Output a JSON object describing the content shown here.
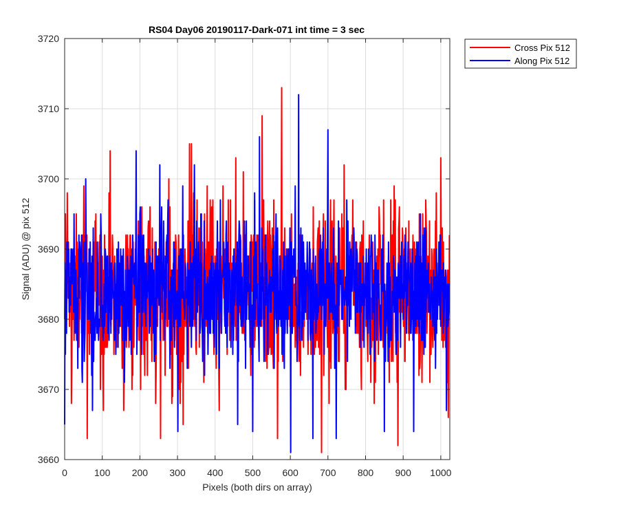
{
  "chart_data": {
    "type": "line",
    "title": "RS04 Day06 20190117-Dark-071 int time = 3 sec",
    "xlabel": "Pixels (both dirs on array)",
    "ylabel": "Signal (ADU) @ pix 512",
    "xlim": [
      0,
      1024
    ],
    "ylim": [
      3660,
      3720
    ],
    "xticks": [
      0,
      100,
      200,
      300,
      400,
      500,
      600,
      700,
      800,
      900,
      1000
    ],
    "yticks": [
      3660,
      3670,
      3680,
      3690,
      3700,
      3710,
      3720
    ],
    "grid": true,
    "legend_position": "outside top-right",
    "n_points": 1024,
    "series": [
      {
        "name": "Cross Pix 512",
        "color": "#ff0000",
        "mean": 3684,
        "noise_std": 6,
        "peaks": [
          [
            7,
            3698
          ],
          [
            18,
            3668
          ],
          [
            60,
            3663
          ],
          [
            121,
            3704
          ],
          [
            157,
            3667
          ],
          [
            255,
            3663
          ],
          [
            332,
            3705
          ],
          [
            337,
            3705
          ],
          [
            455,
            3703
          ],
          [
            475,
            3701
          ],
          [
            525,
            3709
          ],
          [
            566,
            3663
          ],
          [
            577,
            3713
          ],
          [
            683,
            3661
          ],
          [
            743,
            3702
          ],
          [
            848,
            3697
          ],
          [
            886,
            3662
          ],
          [
            1000,
            3703
          ],
          [
            1020,
            3666
          ]
        ]
      },
      {
        "name": "Along Pix 512",
        "color": "#0000ff",
        "mean": 3684,
        "noise_std": 5,
        "peaks": [
          [
            0,
            3665
          ],
          [
            74,
            3667
          ],
          [
            190,
            3704
          ],
          [
            253,
            3702
          ],
          [
            301,
            3664
          ],
          [
            345,
            3702
          ],
          [
            460,
            3665
          ],
          [
            500,
            3664
          ],
          [
            518,
            3706
          ],
          [
            601,
            3661
          ],
          [
            622,
            3712
          ],
          [
            660,
            3663
          ],
          [
            700,
            3707
          ],
          [
            722,
            3663
          ],
          [
            850,
            3664
          ],
          [
            928,
            3664
          ],
          [
            1015,
            3667
          ]
        ]
      }
    ]
  }
}
